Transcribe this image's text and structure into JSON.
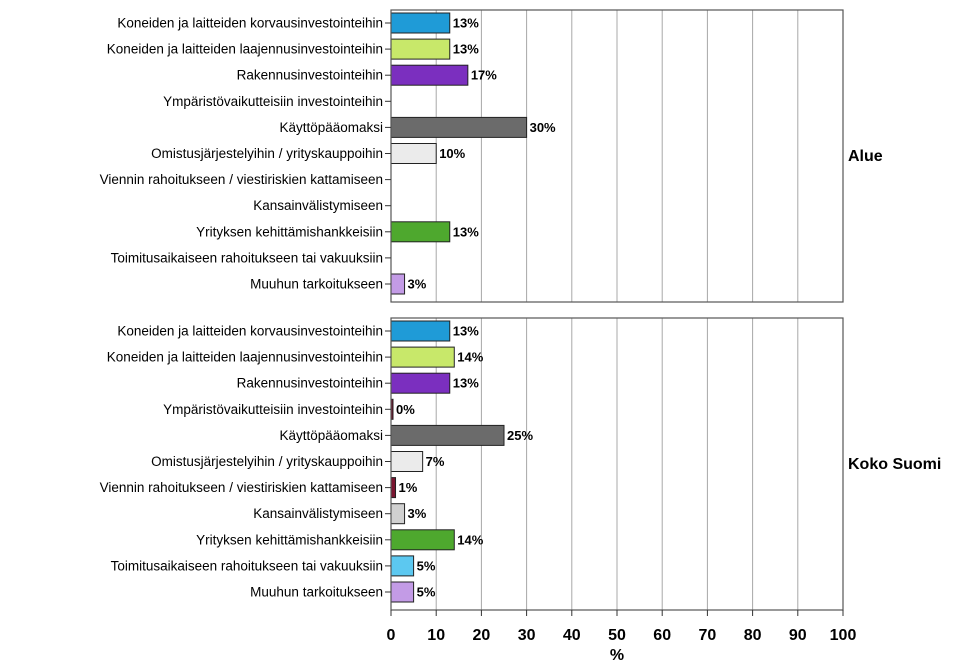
{
  "chart_data": {
    "type": "bar",
    "orientation": "horizontal",
    "xlabel": "%",
    "xlim": [
      0,
      100
    ],
    "xticks": [
      "0",
      "10",
      "20",
      "30",
      "40",
      "50",
      "60",
      "70",
      "80",
      "90",
      "100"
    ],
    "grid": true,
    "categories": [
      "Koneiden ja laitteiden korvausinvestointeihin",
      "Koneiden ja laitteiden laajennusinvestointeihin",
      "Rakennusinvestointeihin",
      "Ympäristövaikutteisiin investointeihin",
      "Käyttöpääomaksi",
      "Omistusjärjestelyihin / yrityskauppoihin",
      "Viennin rahoitukseen / viestiriskien kattamiseen",
      "Kansainvälistymiseen",
      "Yrityksen kehittämishankkeisiin",
      "Toimitusaikaiseen rahoitukseen tai vakuuksiin",
      "Muuhun tarkoitukseen"
    ],
    "colors": [
      "#1f9bd7",
      "#c8e86a",
      "#7b2fbf",
      "#7a1530",
      "#6b6b6b",
      "#ebebeb",
      "#7a1530",
      "#d0d0d0",
      "#4ea82e",
      "#5cc8f0",
      "#c39be6"
    ],
    "panels": [
      {
        "name": "Alue",
        "values": [
          13,
          13,
          17,
          null,
          30,
          10,
          null,
          null,
          13,
          null,
          3
        ],
        "value_labels": [
          "13%",
          "13%",
          "17%",
          "",
          "30%",
          "10%",
          "",
          "",
          "13%",
          "",
          "3%"
        ]
      },
      {
        "name": "Koko Suomi",
        "values": [
          13,
          14,
          13,
          0.3,
          25,
          7,
          1,
          3,
          14,
          5,
          5
        ],
        "value_labels": [
          "13%",
          "14%",
          "13%",
          "0%",
          "25%",
          "7%",
          "1%",
          "3%",
          "14%",
          "5%",
          "5%"
        ]
      }
    ]
  }
}
